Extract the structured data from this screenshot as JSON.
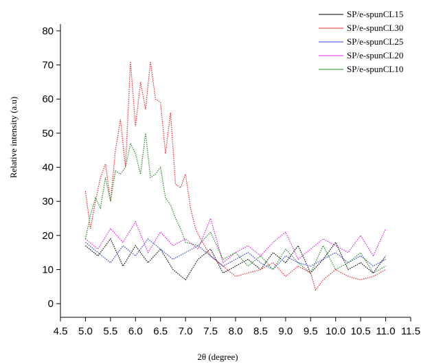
{
  "chart_data": {
    "type": "line",
    "title": "",
    "xlabel": "2θ (degree)",
    "ylabel": "Relative intensity (a.u)",
    "xlim": [
      4.5,
      11.5
    ],
    "ylim": [
      -4,
      82
    ],
    "xticks": [
      "4.5",
      "5.0",
      "5.5",
      "6.0",
      "6.5",
      "7.0",
      "7.5",
      "8.0",
      "8.5",
      "9.0",
      "9.5",
      "10.0",
      "10.5",
      "11.0",
      "11.5"
    ],
    "yticks": [
      "0",
      "10",
      "20",
      "30",
      "40",
      "50",
      "60",
      "70",
      "80"
    ],
    "grid": false,
    "legend_position": "top-right",
    "line_style": "dotted",
    "series": [
      {
        "name": "SP/e-spunCL15",
        "color": "#000000",
        "x": [
          5.0,
          5.25,
          5.5,
          5.75,
          6.0,
          6.25,
          6.5,
          6.75,
          7.0,
          7.25,
          7.5,
          7.75,
          8.0,
          8.25,
          8.5,
          8.75,
          9.0,
          9.25,
          9.5,
          9.75,
          10.0,
          10.25,
          10.5,
          10.75,
          11.0
        ],
        "y": [
          17,
          14,
          19,
          11,
          17,
          12,
          16,
          10,
          7,
          13,
          16,
          9,
          11,
          13,
          10,
          15,
          12,
          17,
          9,
          13,
          18,
          10,
          12,
          9,
          14
        ]
      },
      {
        "name": "SP/e-spunCL30",
        "color": "#e8242c",
        "x": [
          5.0,
          5.1,
          5.2,
          5.3,
          5.4,
          5.5,
          5.6,
          5.7,
          5.8,
          5.9,
          6.0,
          6.1,
          6.2,
          6.3,
          6.4,
          6.5,
          6.6,
          6.7,
          6.8,
          6.9,
          7.0,
          7.1,
          7.2,
          7.3,
          7.5,
          7.75,
          8.0,
          8.25,
          8.5,
          8.75,
          9.0,
          9.25,
          9.5,
          9.6,
          9.75,
          10.0,
          10.25,
          10.5,
          10.75,
          11.0
        ],
        "y": [
          33,
          22,
          30,
          37,
          41,
          30,
          45,
          54,
          40,
          71,
          52,
          65,
          57,
          71,
          60,
          59,
          44,
          56,
          35,
          34,
          38,
          28,
          22,
          19,
          14,
          11,
          8,
          9,
          10,
          12,
          8,
          11,
          9,
          4,
          7,
          10,
          8,
          7,
          8,
          10
        ]
      },
      {
        "name": "SP/e-spunCL25",
        "color": "#2c3fd6",
        "x": [
          5.0,
          5.25,
          5.5,
          5.75,
          6.0,
          6.25,
          6.5,
          6.75,
          7.0,
          7.25,
          7.5,
          7.75,
          8.0,
          8.25,
          8.5,
          8.75,
          9.0,
          9.25,
          9.5,
          9.75,
          10.0,
          10.25,
          10.5,
          10.75,
          11.0
        ],
        "y": [
          18,
          15,
          12,
          17,
          14,
          19,
          16,
          13,
          15,
          17,
          14,
          11,
          13,
          15,
          12,
          10,
          14,
          12,
          11,
          13,
          15,
          12,
          14,
          11,
          13
        ]
      },
      {
        "name": "SP/e-spunCL20",
        "color": "#e020e0",
        "x": [
          5.0,
          5.25,
          5.5,
          5.75,
          6.0,
          6.25,
          6.5,
          6.75,
          7.0,
          7.25,
          7.5,
          7.75,
          8.0,
          8.25,
          8.5,
          8.75,
          9.0,
          9.25,
          9.5,
          9.75,
          10.0,
          10.25,
          10.5,
          10.75,
          11.0
        ],
        "y": [
          19,
          16,
          22,
          18,
          24,
          15,
          21,
          17,
          19,
          16,
          25,
          12,
          15,
          17,
          14,
          18,
          21,
          13,
          16,
          19,
          17,
          15,
          20,
          14,
          22
        ]
      },
      {
        "name": "SP/e-spunCL10",
        "color": "#1f8a1f",
        "x": [
          5.0,
          5.1,
          5.2,
          5.3,
          5.4,
          5.5,
          5.6,
          5.7,
          5.8,
          5.9,
          6.0,
          6.1,
          6.2,
          6.3,
          6.4,
          6.5,
          6.6,
          6.7,
          6.8,
          6.9,
          7.0,
          7.25,
          7.5,
          7.75,
          8.0,
          8.25,
          8.5,
          8.75,
          9.0,
          9.25,
          9.5,
          9.75,
          10.0,
          10.25,
          10.5,
          10.75,
          11.0
        ],
        "y": [
          19,
          26,
          31,
          28,
          37,
          30,
          39,
          38,
          40,
          47,
          44,
          38,
          50,
          37,
          38,
          40,
          31,
          29,
          25,
          22,
          18,
          17,
          21,
          13,
          15,
          11,
          14,
          10,
          16,
          12,
          9,
          17,
          10,
          12,
          15,
          9,
          11
        ]
      }
    ]
  }
}
